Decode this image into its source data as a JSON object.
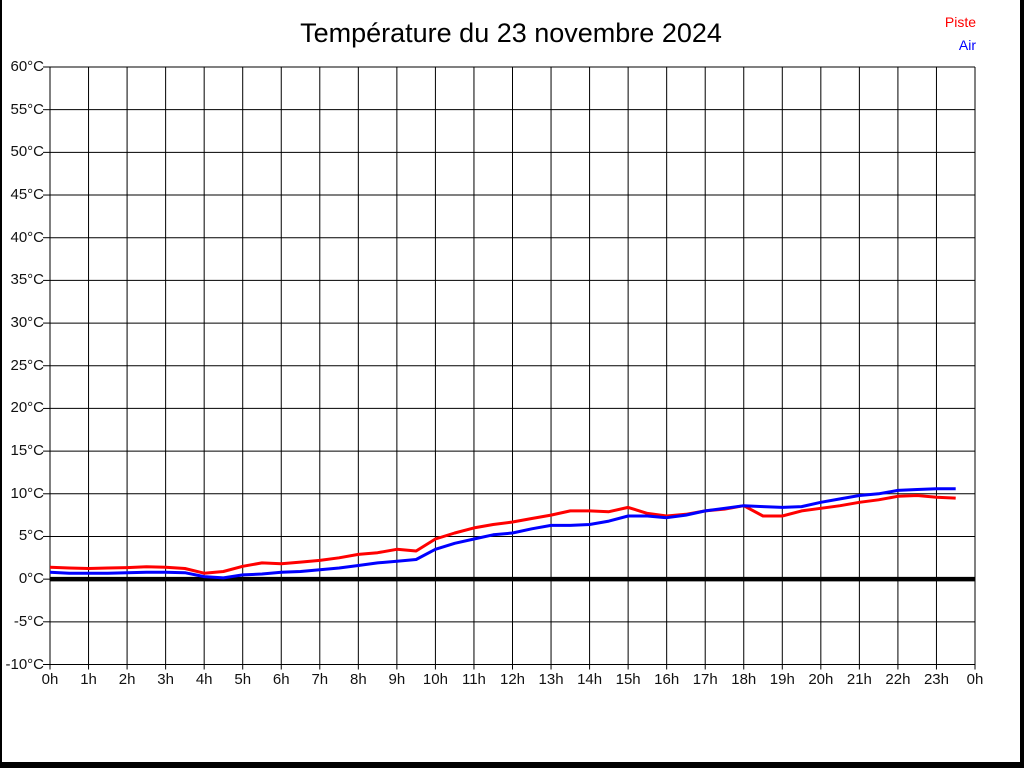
{
  "header": {
    "title": "Température du 23 novembre 2024"
  },
  "legend": {
    "piste_label": "Piste",
    "air_label": "Air"
  },
  "chart_data": {
    "type": "line",
    "title": "Température du 23 novembre 2024",
    "xlabel": "",
    "ylabel": "",
    "xlim": [
      0,
      24
    ],
    "ylim": [
      -10,
      60
    ],
    "x_step_hours": 1,
    "y_step_deg": 5,
    "grid": true,
    "zero_line": true,
    "legend_position": "top-right",
    "x_tick_labels": [
      "0h",
      "1h",
      "2h",
      "3h",
      "4h",
      "5h",
      "6h",
      "7h",
      "8h",
      "9h",
      "10h",
      "11h",
      "12h",
      "13h",
      "14h",
      "15h",
      "16h",
      "17h",
      "18h",
      "19h",
      "20h",
      "21h",
      "22h",
      "23h",
      "0h"
    ],
    "y_tick_labels": [
      "60°C",
      "55°C",
      "50°C",
      "45°C",
      "40°C",
      "35°C",
      "30°C",
      "25°C",
      "20°C",
      "15°C",
      "10°C",
      "5°C",
      "0°C",
      "-5°C",
      "-10°C"
    ],
    "x": [
      0,
      0.5,
      1,
      1.5,
      2,
      2.5,
      3,
      3.5,
      4,
      4.5,
      5,
      5.5,
      6,
      6.5,
      7,
      7.5,
      8,
      8.5,
      9,
      9.5,
      10,
      10.5,
      11,
      11.5,
      12,
      12.5,
      13,
      13.5,
      14,
      14.5,
      15,
      15.5,
      16,
      16.5,
      17,
      17.5,
      18,
      18.5,
      19,
      19.5,
      20,
      20.5,
      21,
      21.5,
      22,
      22.5,
      23,
      23.5
    ],
    "series": [
      {
        "name": "Piste",
        "color": "#ff0000",
        "values": [
          1.4,
          1.3,
          1.25,
          1.3,
          1.35,
          1.45,
          1.4,
          1.25,
          0.7,
          0.9,
          1.5,
          1.9,
          1.8,
          2.0,
          2.2,
          2.5,
          2.9,
          3.1,
          3.5,
          3.3,
          4.7,
          5.4,
          6.0,
          6.4,
          6.7,
          7.1,
          7.5,
          8.0,
          8.0,
          7.9,
          8.4,
          7.7,
          7.4,
          7.6,
          8.0,
          8.2,
          8.6,
          7.4,
          7.4,
          8.0,
          8.3,
          8.6,
          9.0,
          9.3,
          9.7,
          9.8,
          9.6,
          9.5
        ]
      },
      {
        "name": "Air",
        "color": "#0000ff",
        "values": [
          0.8,
          0.7,
          0.7,
          0.7,
          0.75,
          0.8,
          0.8,
          0.75,
          0.3,
          0.15,
          0.5,
          0.6,
          0.8,
          0.9,
          1.1,
          1.3,
          1.6,
          1.9,
          2.1,
          2.3,
          3.5,
          4.2,
          4.7,
          5.2,
          5.4,
          5.9,
          6.3,
          6.3,
          6.4,
          6.8,
          7.4,
          7.4,
          7.2,
          7.5,
          8.0,
          8.3,
          8.6,
          8.5,
          8.4,
          8.5,
          9.0,
          9.4,
          9.8,
          10.0,
          10.4,
          10.5,
          10.6,
          10.6
        ]
      }
    ],
    "axis_color": "#000000",
    "zero_line_color": "#000000"
  }
}
